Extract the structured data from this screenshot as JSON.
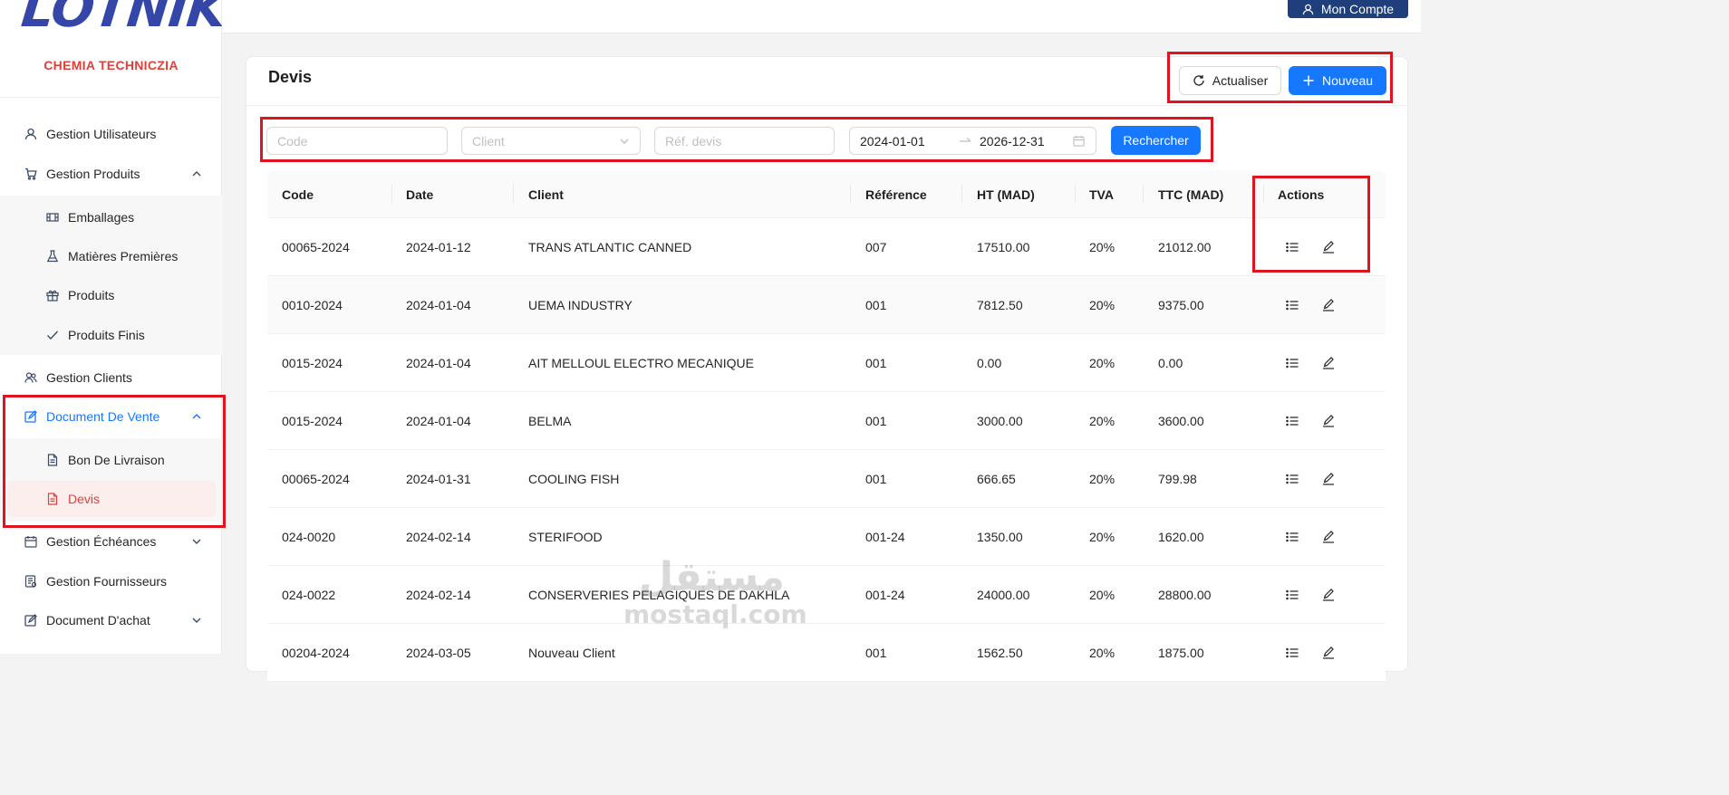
{
  "brand": {
    "logo": "LOTNIK",
    "subtitle": "CHEMIA TECHNICZIA"
  },
  "topbar": {
    "account_label": "Mon Compte"
  },
  "sidebar": {
    "items": [
      {
        "label": "Gestion Utilisateurs",
        "icon": "user-icon"
      },
      {
        "label": "Gestion Produits",
        "icon": "cart-icon",
        "expanded": true
      },
      {
        "label": "Emballages",
        "icon": "box-icon"
      },
      {
        "label": "Matières Premières",
        "icon": "flask-icon"
      },
      {
        "label": "Produits",
        "icon": "gift-icon"
      },
      {
        "label": "Produits Finis",
        "icon": "check-icon"
      },
      {
        "label": "Gestion Clients",
        "icon": "users-icon"
      },
      {
        "label": "Document De Vente",
        "icon": "edit-icon",
        "expanded": true
      },
      {
        "label": "Bon De Livraison",
        "icon": "file-icon"
      },
      {
        "label": "Devis",
        "icon": "file-icon",
        "active": true
      },
      {
        "label": "Gestion Échéances",
        "icon": "calendar-icon"
      },
      {
        "label": "Gestion Fournisseurs",
        "icon": "document-icon"
      },
      {
        "label": "Document D'achat",
        "icon": "edit-icon"
      }
    ]
  },
  "page": {
    "title": "Devis",
    "refresh_label": "Actualiser",
    "new_label": "Nouveau"
  },
  "filters": {
    "code_placeholder": "Code",
    "client_placeholder": "Client",
    "ref_placeholder": "Réf. devis",
    "date_from": "2024-01-01",
    "date_to": "2026-12-31",
    "search_label": "Rechercher"
  },
  "table": {
    "columns": [
      "Code",
      "Date",
      "Client",
      "Référence",
      "HT (MAD)",
      "TVA",
      "TTC (MAD)",
      "Actions"
    ],
    "rows": [
      [
        "00065-2024",
        "2024-01-12",
        "TRANS ATLANTIC CANNED",
        "007",
        "17510.00",
        "20%",
        "21012.00"
      ],
      [
        "0010-2024",
        "2024-01-04",
        "UEMA INDUSTRY",
        "001",
        "7812.50",
        "20%",
        "9375.00"
      ],
      [
        "0015-2024",
        "2024-01-04",
        "AIT MELLOUL ELECTRO MECANIQUE",
        "001",
        "0.00",
        "20%",
        "0.00"
      ],
      [
        "0015-2024",
        "2024-01-04",
        "BELMA",
        "001",
        "3000.00",
        "20%",
        "3600.00"
      ],
      [
        "00065-2024",
        "2024-01-31",
        "COOLING FISH",
        "001",
        "666.65",
        "20%",
        "799.98"
      ],
      [
        "024-0020",
        "2024-02-14",
        "STERIFOOD",
        "001-24",
        "1350.00",
        "20%",
        "1620.00"
      ],
      [
        "024-0022",
        "2024-02-14",
        "CONSERVERIES PELAGIQUES DE DAKHLA",
        "001-24",
        "24000.00",
        "20%",
        "28800.00"
      ],
      [
        "00204-2024",
        "2024-03-05",
        "Nouveau Client",
        "001",
        "1562.50",
        "20%",
        "1875.00"
      ]
    ]
  },
  "watermark": {
    "arabic": "مستقل",
    "latin": "mostaql.com"
  },
  "colors": {
    "accent": "#1677ff",
    "brand_red": "#e0403a",
    "logo_blue": "#3446a8",
    "highlight_red": "#e0141f"
  }
}
